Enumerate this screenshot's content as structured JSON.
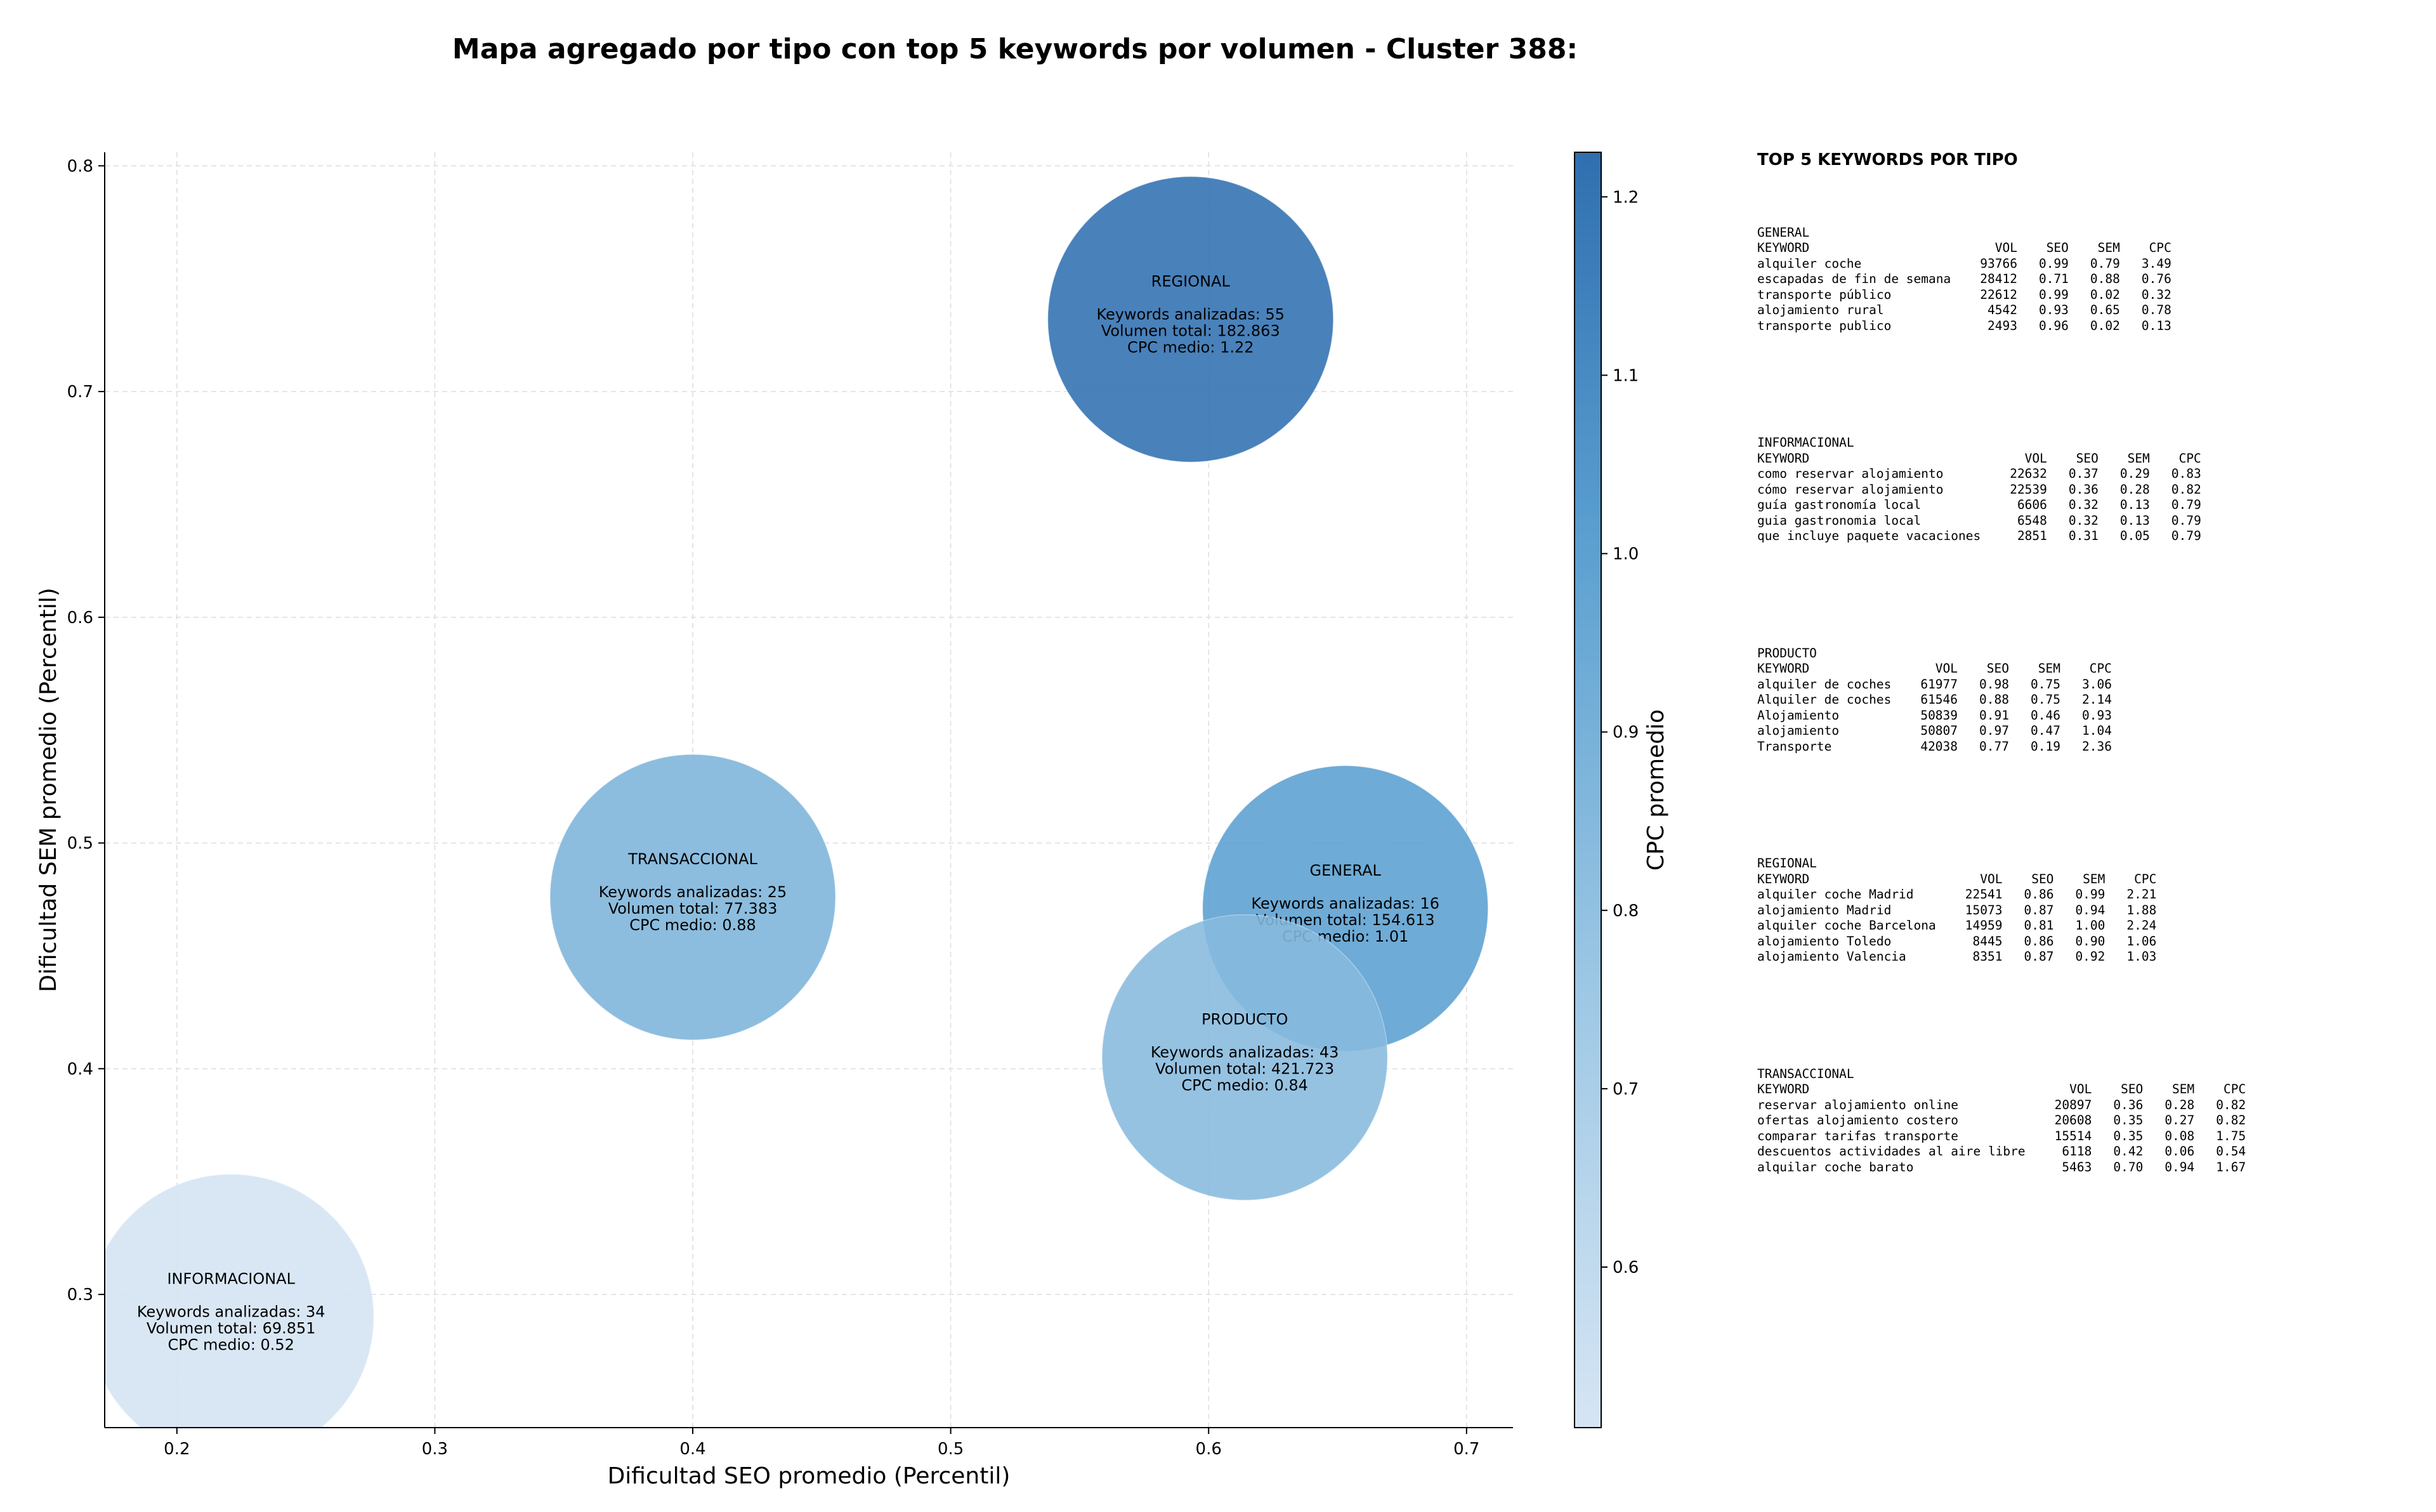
{
  "chart_data": {
    "type": "scatter",
    "title": "Mapa agregado por tipo con top 5 keywords por volumen - Cluster 388:",
    "xlabel": "Dificultad SEO promedio (Percentil)",
    "ylabel": "Dificultad SEM promedio (Percentil)",
    "xlim": [
      0.172,
      0.718
    ],
    "ylim": [
      0.241,
      0.806
    ],
    "xticks": [
      "0.2",
      "0.3",
      "0.4",
      "0.5",
      "0.6",
      "0.7"
    ],
    "yticks": [
      "0.3",
      "0.4",
      "0.5",
      "0.6",
      "0.7",
      "0.8"
    ],
    "grid": true,
    "colorbar": {
      "label": "CPC promedio",
      "min": 0.51,
      "max": 1.225,
      "ticks": [
        "0.6",
        "0.7",
        "0.8",
        "0.9",
        "1.0",
        "1.1",
        "1.2"
      ],
      "colors": [
        "#d6e5f4",
        "#2f6fb0"
      ]
    },
    "points": [
      {
        "type": "REGIONAL",
        "seo": 0.593,
        "sem": 0.732,
        "cpc": 1.22,
        "keywords_label": "Keywords analizadas: 55",
        "volume_label": "Volumen total: 182.863",
        "cpc_label": "CPC medio: 1.22"
      },
      {
        "type": "TRANSACCIONAL",
        "seo": 0.4,
        "sem": 0.476,
        "cpc": 0.88,
        "keywords_label": "Keywords analizadas: 25",
        "volume_label": "Volumen total: 77.383",
        "cpc_label": "CPC medio: 0.88"
      },
      {
        "type": "GENERAL",
        "seo": 0.653,
        "sem": 0.471,
        "cpc": 1.01,
        "keywords_label": "Keywords analizadas: 16",
        "volume_label": "Volumen total: 154.613",
        "cpc_label": "CPC medio: 1.01"
      },
      {
        "type": "PRODUCTO",
        "seo": 0.614,
        "sem": 0.405,
        "cpc": 0.84,
        "keywords_label": "Keywords analizadas: 43",
        "volume_label": "Volumen total: 421.723",
        "cpc_label": "CPC medio: 0.84"
      },
      {
        "type": "INFORMACIONAL",
        "seo": 0.221,
        "sem": 0.29,
        "cpc": 0.52,
        "keywords_label": "Keywords analizadas: 34",
        "volume_label": "Volumen total: 69.851",
        "cpc_label": "CPC medio: 0.52"
      }
    ]
  },
  "side_panel": {
    "title": "TOP 5 KEYWORDS POR TIPO",
    "headers": {
      "keyword": "KEYWORD",
      "vol": "VOL",
      "seo": "SEO",
      "sem": "SEM",
      "cpc": "CPC"
    },
    "sections": [
      {
        "name": "GENERAL",
        "rows": [
          {
            "keyword": "alquiler coche",
            "vol": "93766",
            "seo": "0.99",
            "sem": "0.79",
            "cpc": "3.49"
          },
          {
            "keyword": "escapadas de fin de semana",
            "vol": "28412",
            "seo": "0.71",
            "sem": "0.88",
            "cpc": "0.76"
          },
          {
            "keyword": "transporte público",
            "vol": "22612",
            "seo": "0.99",
            "sem": "0.02",
            "cpc": "0.32"
          },
          {
            "keyword": "alojamiento rural",
            "vol": "4542",
            "seo": "0.93",
            "sem": "0.65",
            "cpc": "0.78"
          },
          {
            "keyword": "transporte publico",
            "vol": "2493",
            "seo": "0.96",
            "sem": "0.02",
            "cpc": "0.13"
          }
        ]
      },
      {
        "name": "INFORMACIONAL",
        "rows": [
          {
            "keyword": "como reservar alojamiento",
            "vol": "22632",
            "seo": "0.37",
            "sem": "0.29",
            "cpc": "0.83"
          },
          {
            "keyword": "cómo reservar alojamiento",
            "vol": "22539",
            "seo": "0.36",
            "sem": "0.28",
            "cpc": "0.82"
          },
          {
            "keyword": "guía gastronomía local",
            "vol": "6606",
            "seo": "0.32",
            "sem": "0.13",
            "cpc": "0.79"
          },
          {
            "keyword": "guia gastronomia local",
            "vol": "6548",
            "seo": "0.32",
            "sem": "0.13",
            "cpc": "0.79"
          },
          {
            "keyword": "que incluye paquete vacaciones",
            "vol": "2851",
            "seo": "0.31",
            "sem": "0.05",
            "cpc": "0.79"
          }
        ]
      },
      {
        "name": "PRODUCTO",
        "rows": [
          {
            "keyword": "alquiler de coches",
            "vol": "61977",
            "seo": "0.98",
            "sem": "0.75",
            "cpc": "3.06"
          },
          {
            "keyword": "Alquiler de coches",
            "vol": "61546",
            "seo": "0.88",
            "sem": "0.75",
            "cpc": "2.14"
          },
          {
            "keyword": "Alojamiento",
            "vol": "50839",
            "seo": "0.91",
            "sem": "0.46",
            "cpc": "0.93"
          },
          {
            "keyword": "alojamiento",
            "vol": "50807",
            "seo": "0.97",
            "sem": "0.47",
            "cpc": "1.04"
          },
          {
            "keyword": "Transporte",
            "vol": "42038",
            "seo": "0.77",
            "sem": "0.19",
            "cpc": "2.36"
          }
        ]
      },
      {
        "name": "REGIONAL",
        "rows": [
          {
            "keyword": "alquiler coche Madrid",
            "vol": "22541",
            "seo": "0.86",
            "sem": "0.99",
            "cpc": "2.21"
          },
          {
            "keyword": "alojamiento Madrid",
            "vol": "15073",
            "seo": "0.87",
            "sem": "0.94",
            "cpc": "1.88"
          },
          {
            "keyword": "alquiler coche Barcelona",
            "vol": "14959",
            "seo": "0.81",
            "sem": "1.00",
            "cpc": "2.24"
          },
          {
            "keyword": "alojamiento Toledo",
            "vol": "8445",
            "seo": "0.86",
            "sem": "0.90",
            "cpc": "1.06"
          },
          {
            "keyword": "alojamiento Valencia",
            "vol": "8351",
            "seo": "0.87",
            "sem": "0.92",
            "cpc": "1.03"
          }
        ]
      },
      {
        "name": "TRANSACCIONAL",
        "rows": [
          {
            "keyword": "reservar alojamiento online",
            "vol": "20897",
            "seo": "0.36",
            "sem": "0.28",
            "cpc": "0.82"
          },
          {
            "keyword": "ofertas alojamiento costero",
            "vol": "20608",
            "seo": "0.35",
            "sem": "0.27",
            "cpc": "0.82"
          },
          {
            "keyword": "comparar tarifas transporte",
            "vol": "15514",
            "seo": "0.35",
            "sem": "0.08",
            "cpc": "1.75"
          },
          {
            "keyword": "descuentos actividades al aire libre",
            "vol": "6118",
            "seo": "0.42",
            "sem": "0.06",
            "cpc": "0.54"
          },
          {
            "keyword": "alquilar coche barato",
            "vol": "5463",
            "seo": "0.70",
            "sem": "0.94",
            "cpc": "1.67"
          }
        ]
      }
    ]
  }
}
